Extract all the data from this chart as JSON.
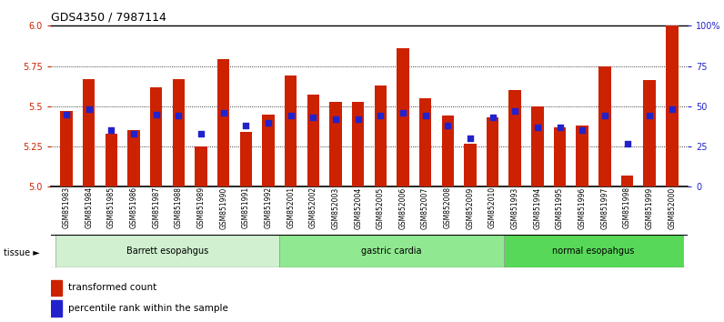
{
  "title": "GDS4350 / 7987114",
  "samples": [
    "GSM851983",
    "GSM851984",
    "GSM851985",
    "GSM851986",
    "GSM851987",
    "GSM851988",
    "GSM851989",
    "GSM851990",
    "GSM851991",
    "GSM851992",
    "GSM852001",
    "GSM852002",
    "GSM852003",
    "GSM852004",
    "GSM852005",
    "GSM852006",
    "GSM852007",
    "GSM852008",
    "GSM852009",
    "GSM852010",
    "GSM851993",
    "GSM851994",
    "GSM851995",
    "GSM851996",
    "GSM851997",
    "GSM851998",
    "GSM851999",
    "GSM852000"
  ],
  "red_values": [
    5.47,
    5.67,
    5.33,
    5.35,
    5.62,
    5.67,
    5.25,
    5.79,
    5.34,
    5.45,
    5.69,
    5.57,
    5.53,
    5.53,
    5.63,
    5.86,
    5.55,
    5.44,
    5.27,
    5.43,
    5.6,
    5.5,
    5.37,
    5.38,
    5.75,
    5.07,
    5.66,
    6.0
  ],
  "blue_values": [
    45,
    48,
    35,
    33,
    45,
    44,
    33,
    46,
    38,
    40,
    44,
    43,
    42,
    42,
    44,
    46,
    44,
    38,
    30,
    43,
    47,
    37,
    37,
    35,
    44,
    27,
    44,
    48
  ],
  "groups": [
    {
      "label": "Barrett esopahgus",
      "start": 0,
      "end": 10,
      "color": "#d0f0d0"
    },
    {
      "label": "gastric cardia",
      "start": 10,
      "end": 20,
      "color": "#90e890"
    },
    {
      "label": "normal esopahgus",
      "start": 20,
      "end": 28,
      "color": "#58d858"
    }
  ],
  "ylim_left": [
    5.0,
    6.0
  ],
  "ylim_right": [
    0,
    100
  ],
  "yticks_left": [
    5.0,
    5.25,
    5.5,
    5.75,
    6.0
  ],
  "yticks_right": [
    0,
    25,
    50,
    75,
    100
  ],
  "ytick_labels_right": [
    "0",
    "25",
    "50",
    "75",
    "100%"
  ],
  "bar_color": "#cc2200",
  "dot_color": "#2222cc",
  "background_color": "#ffffff",
  "bar_width": 0.55,
  "dot_size": 18,
  "title_fontsize": 9,
  "tick_fontsize": 7,
  "label_fontsize": 7
}
